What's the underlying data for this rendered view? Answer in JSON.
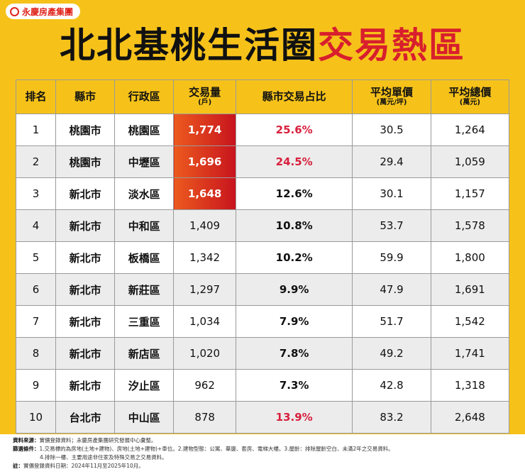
{
  "logo": "永慶房產集團",
  "title": {
    "main": "北北基桃生活圈",
    "highlight": "交易熱區"
  },
  "table": {
    "headers": [
      {
        "label": "排名"
      },
      {
        "label": "縣市"
      },
      {
        "label": "行政區"
      },
      {
        "label": "交易量",
        "unit": "(戶)"
      },
      {
        "label": "縣市交易占比"
      },
      {
        "label": "平均單價",
        "unit": "(萬元/坪)"
      },
      {
        "label": "平均總價",
        "unit": "(萬元)"
      }
    ],
    "rows": [
      [
        "1",
        "桃園市",
        "桃園區",
        "1,774",
        "25.6%",
        "30.5",
        "1,264"
      ],
      [
        "2",
        "桃園市",
        "中壢區",
        "1,696",
        "24.5%",
        "29.4",
        "1,059"
      ],
      [
        "3",
        "新北市",
        "淡水區",
        "1,648",
        "12.6%",
        "30.1",
        "1,157"
      ],
      [
        "4",
        "新北市",
        "中和區",
        "1,409",
        "10.8%",
        "53.7",
        "1,578"
      ],
      [
        "5",
        "新北市",
        "板橋區",
        "1,342",
        "10.2%",
        "59.9",
        "1,800"
      ],
      [
        "6",
        "新北市",
        "新莊區",
        "1,297",
        "9.9%",
        "47.9",
        "1,691"
      ],
      [
        "7",
        "新北市",
        "三重區",
        "1,034",
        "7.9%",
        "51.7",
        "1,542"
      ],
      [
        "8",
        "新北市",
        "新店區",
        "1,020",
        "7.8%",
        "49.2",
        "1,741"
      ],
      [
        "9",
        "新北市",
        "汐止區",
        "962",
        "7.3%",
        "42.8",
        "1,318"
      ],
      [
        "10",
        "台北市",
        "中山區",
        "878",
        "13.9%",
        "83.2",
        "2,648"
      ]
    ]
  },
  "notes": [
    {
      "label": "資料來源：",
      "text": "實價登錄資料；永慶房產集團研究發展中心彙整。"
    },
    {
      "label": "篩選條件：",
      "text": "1.交易標的為房地(土地+建物)、房地(土地+建物)+車位。2.建物型態：公寓、華廈、套房、電梯大樓。3.屋齡：排除屋齡空白、未滿2年之交易資料。"
    },
    {
      "label": "",
      "text": "4.排除一樓、主要用途非住家及特殊交易之交易資料。"
    },
    {
      "label": "註：",
      "text": "實價登錄資料日期：2024年11月至2025年10月。"
    }
  ]
}
